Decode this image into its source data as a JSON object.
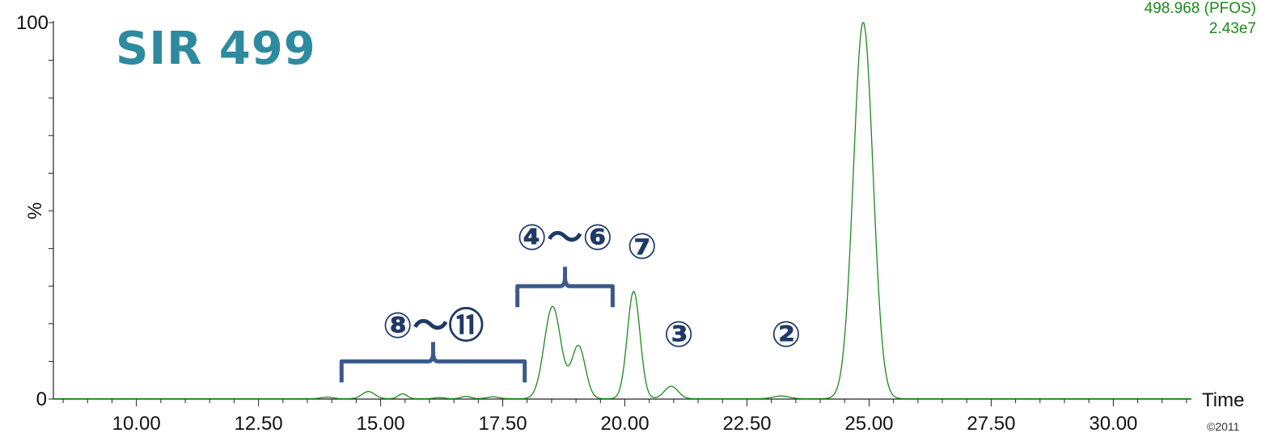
{
  "chart_data": {
    "type": "line",
    "title": "SIR 499",
    "xlabel": "Time",
    "ylabel": "%",
    "xlim": [
      8.3,
      31.6
    ],
    "ylim": [
      0,
      100
    ],
    "x_ticks": [
      "10.00",
      "12.50",
      "15.00",
      "17.50",
      "20.00",
      "22.50",
      "25.00",
      "27.50",
      "30.00"
    ],
    "y_ticks": [
      "0",
      "100"
    ],
    "trace_label": "498.968 (PFOS)",
    "intensity": "2.43e7",
    "copyright": "©2011",
    "series_color": "#1a8a1a",
    "peaks": [
      {
        "rt": 13.9,
        "height": 0.4,
        "width": 0.12
      },
      {
        "rt": 14.75,
        "height": 1.9,
        "width": 0.13
      },
      {
        "rt": 15.45,
        "height": 1.3,
        "width": 0.09
      },
      {
        "rt": 16.2,
        "height": 0.3,
        "width": 0.1
      },
      {
        "rt": 16.75,
        "height": 0.6,
        "width": 0.1
      },
      {
        "rt": 17.3,
        "height": 0.5,
        "width": 0.12
      },
      {
        "rt": 18.52,
        "height": 24.5,
        "width": 0.17
      },
      {
        "rt": 19.05,
        "height": 14.0,
        "width": 0.14
      },
      {
        "rt": 20.18,
        "height": 28.5,
        "width": 0.13
      },
      {
        "rt": 20.95,
        "height": 3.3,
        "width": 0.14
      },
      {
        "rt": 23.2,
        "height": 0.7,
        "width": 0.16
      },
      {
        "rt": 24.88,
        "height": 100.0,
        "width": 0.2
      }
    ],
    "annotations": [
      {
        "label": "⑧～⑪",
        "rt_start": 14.2,
        "rt_end": 17.95,
        "level": 10
      },
      {
        "label": "④～⑥",
        "rt_start": 17.8,
        "rt_end": 19.75,
        "level": 30
      },
      {
        "label": "⑦",
        "rt": 20.35,
        "level": 33
      },
      {
        "label": "③",
        "rt": 21.1,
        "level": 8
      },
      {
        "label": "②",
        "rt": 23.3,
        "level": 8
      }
    ]
  }
}
